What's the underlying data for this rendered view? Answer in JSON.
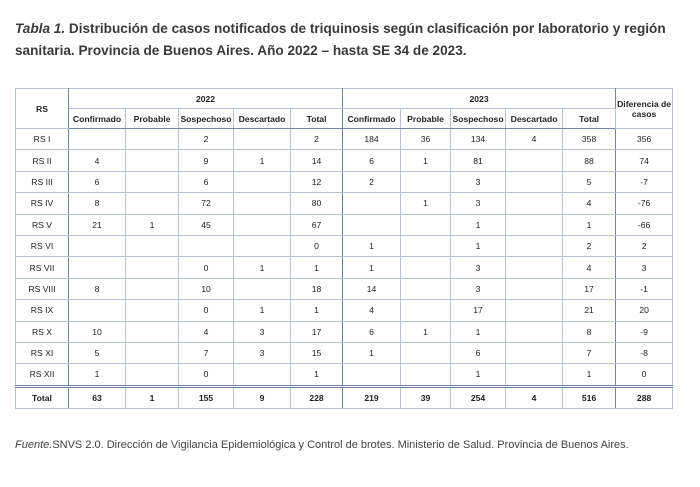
{
  "caption": {
    "label": "Tabla 1.",
    "text": "Distribución de casos notificados de triquinosis según clasificación por laboratorio y región sanitaria. Provincia de Buenos Aires. Año 2022 – hasta SE 34 de 2023."
  },
  "table": {
    "corner": "RS",
    "groups": [
      {
        "year": "2022",
        "columns": [
          "Confirmado",
          "Probable",
          "Sospechoso",
          "Descartado",
          "Total"
        ]
      },
      {
        "year": "2023",
        "columns": [
          "Confirmado",
          "Probable",
          "Sospechoso",
          "Descartado",
          "Total"
        ]
      }
    ],
    "diff_header": "Diferencia de casos",
    "rows": [
      [
        "RS I",
        null,
        null,
        2,
        null,
        2,
        184,
        36,
        134,
        4,
        358,
        356
      ],
      [
        "RS II",
        4,
        null,
        9,
        1,
        14,
        6,
        1,
        81,
        null,
        88,
        74
      ],
      [
        "RS III",
        6,
        null,
        6,
        null,
        12,
        2,
        null,
        3,
        null,
        5,
        -7
      ],
      [
        "RS IV",
        8,
        null,
        72,
        null,
        80,
        null,
        1,
        3,
        null,
        4,
        -76
      ],
      [
        "RS V",
        21,
        1,
        45,
        null,
        67,
        null,
        null,
        1,
        null,
        1,
        -66
      ],
      [
        "RS VI",
        null,
        null,
        null,
        null,
        0,
        1,
        null,
        1,
        null,
        2,
        2
      ],
      [
        "RS VII",
        null,
        null,
        0,
        1,
        1,
        1,
        null,
        3,
        null,
        4,
        3
      ],
      [
        "RS VIII",
        8,
        null,
        10,
        null,
        18,
        14,
        null,
        3,
        null,
        17,
        -1
      ],
      [
        "RS IX",
        null,
        null,
        0,
        1,
        1,
        4,
        null,
        17,
        null,
        21,
        20
      ],
      [
        "RS X",
        10,
        null,
        4,
        3,
        17,
        6,
        1,
        1,
        null,
        8,
        -9
      ],
      [
        "RS XI",
        5,
        null,
        7,
        3,
        15,
        1,
        null,
        6,
        null,
        7,
        -8
      ],
      [
        "RS XII",
        1,
        null,
        0,
        null,
        1,
        null,
        null,
        1,
        null,
        1,
        0
      ],
      [
        "Total",
        63,
        1,
        155,
        9,
        228,
        219,
        39,
        254,
        4,
        516,
        288
      ]
    ]
  },
  "source": {
    "label": "Fuente.",
    "text": "SNVS 2.0. Dirección de Vigilancia Epidemiológica y Control de brotes. Ministerio de Salud. Provincia de Buenos Aires."
  }
}
